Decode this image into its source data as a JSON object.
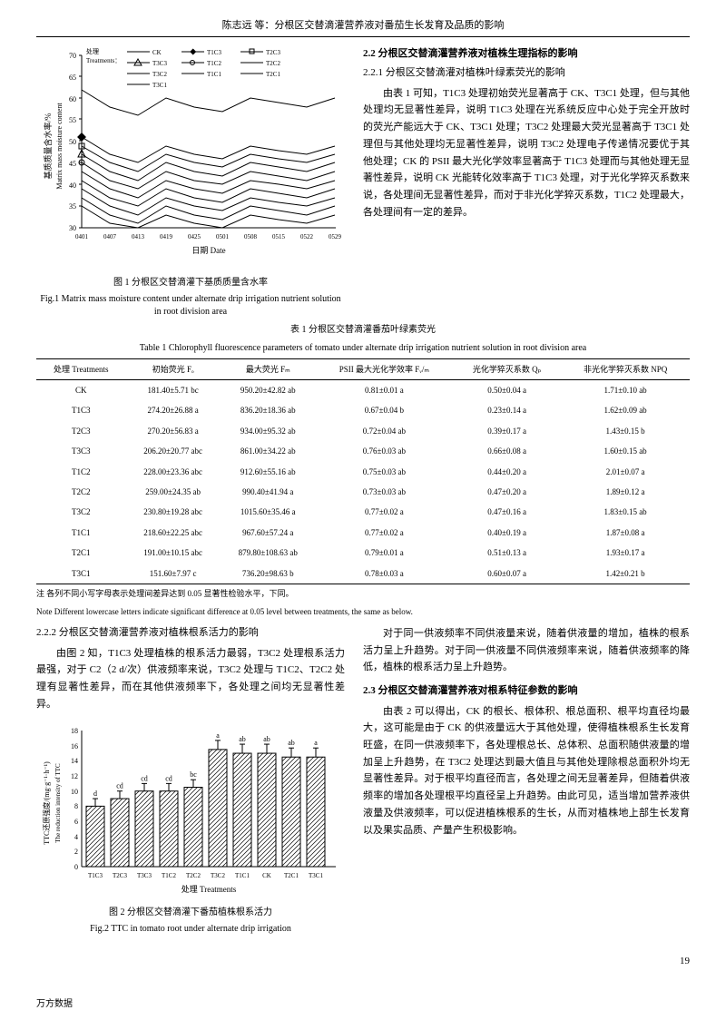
{
  "header": {
    "running_title": "陈志远 等：分根区交替滴灌营养液对番茄生长发育及品质的影响"
  },
  "fig1": {
    "type": "line",
    "title_cn": "图 1 分根区交替滴灌下基质质量含水率",
    "title_en": "Fig.1   Matrix mass moisture content under alternate drip irrigation nutrient solution in root division area",
    "xlabel": "日期 Date",
    "ylabel": "基质质量含水率/%\nMatrix mass moisture content",
    "xlim": [
      "0401",
      "0529"
    ],
    "ylim": [
      30,
      70
    ],
    "ytick_step": 5,
    "legend_label": "处理\nTreatments：",
    "x_ticks": [
      "0401",
      "0407",
      "0413",
      "0419",
      "0425",
      "0501",
      "0508",
      "0515",
      "0522",
      "0529"
    ],
    "series": [
      {
        "name": "CK",
        "marker": "line",
        "color": "#000000",
        "values": [
          62,
          58,
          56,
          60,
          58,
          57,
          60,
          59,
          58,
          60
        ]
      },
      {
        "name": "T1C3",
        "marker": "diamond",
        "color": "#000000",
        "values": [
          51,
          47,
          45,
          49,
          47,
          46,
          49,
          48,
          47,
          49
        ]
      },
      {
        "name": "T2C3",
        "marker": "square",
        "color": "#000000",
        "values": [
          49,
          45,
          43,
          47,
          45,
          44,
          47,
          46,
          45,
          47
        ]
      },
      {
        "name": "T3C3",
        "marker": "triangle",
        "color": "#000000",
        "values": [
          47,
          43,
          41,
          45,
          43,
          42,
          45,
          44,
          43,
          45
        ]
      },
      {
        "name": "T1C2",
        "marker": "circle",
        "color": "#000000",
        "values": [
          45,
          41,
          39,
          43,
          41,
          40,
          43,
          42,
          41,
          43
        ]
      },
      {
        "name": "T2C2",
        "marker": "diamond-open",
        "color": "#000000",
        "values": [
          43,
          39,
          37,
          41,
          39,
          38,
          41,
          40,
          39,
          41
        ]
      },
      {
        "name": "T3C2",
        "marker": "square-open",
        "color": "#000000",
        "values": [
          41,
          37,
          35,
          39,
          37,
          36,
          39,
          38,
          37,
          39
        ]
      },
      {
        "name": "T1C1",
        "marker": "triangle-open",
        "color": "#000000",
        "values": [
          39,
          35,
          33,
          37,
          35,
          34,
          37,
          36,
          35,
          37
        ]
      },
      {
        "name": "T2C1",
        "marker": "x",
        "color": "#000000",
        "values": [
          37,
          33,
          31,
          35,
          33,
          32,
          35,
          34,
          33,
          35
        ]
      },
      {
        "name": "T3C1",
        "marker": "plus",
        "color": "#000000",
        "values": [
          35,
          31,
          30,
          33,
          31,
          30,
          33,
          32,
          31,
          33
        ]
      }
    ],
    "background_color": "#ffffff",
    "grid": false,
    "label_fontsize": 9
  },
  "section_2_2": {
    "title": "2.2 分根区交替滴灌营养液对植株生理指标的影响",
    "sub_2_2_1_title": "2.2.1 分根区交替滴灌对植株叶绿素荧光的影响",
    "para1": "由表 1 可知，T1C3 处理初始荧光显著高于 CK、T3C1 处理，但与其他处理均无显著性差异，说明 T1C3 处理在光系统反应中心处于完全开放时的荧光产能远大于 CK、T3C1 处理；T3C2 处理最大荧光显著高于 T3C1 处理但与其他处理均无显著性差异，说明 T3C2 处理电子传递情况要优于其他处理；CK 的 PSII 最大光化学效率显著高于 T1C3 处理而与其他处理无显著性差异，说明 CK 光能转化效率高于 T1C3 处理，对于光化学猝灭系数来说，各处理间无显著性差异，而对于非光化学猝灭系数，T1C2 处理最大，各处理间有一定的差异。"
  },
  "table1": {
    "caption_cn": "表 1 分根区交替滴灌番茄叶绿素荧光",
    "caption_en": "Table 1   Chlorophyll fluorescence parameters of tomato under alternate drip irrigation nutrient solution in root division area",
    "columns": [
      "处理 Treatments",
      "初始荧光 Fₒ",
      "最大荧光 Fₘ",
      "PSII 最大光化学效率 Fᵥ/ₘ",
      "光化学猝灭系数 Qₚ",
      "非光化学猝灭系数 NPQ"
    ],
    "rows": [
      [
        "CK",
        "181.40±5.71 bc",
        "950.20±42.82 ab",
        "0.81±0.01 a",
        "0.50±0.04 a",
        "1.71±0.10 ab"
      ],
      [
        "T1C3",
        "274.20±26.88 a",
        "836.20±18.36 ab",
        "0.67±0.04 b",
        "0.23±0.14 a",
        "1.62±0.09 ab"
      ],
      [
        "T2C3",
        "270.20±56.83 a",
        "934.00±95.32 ab",
        "0.72±0.04 ab",
        "0.39±0.17 a",
        "1.43±0.15 b"
      ],
      [
        "T3C3",
        "206.20±20.77 abc",
        "861.00±34.22 ab",
        "0.76±0.03 ab",
        "0.66±0.08 a",
        "1.60±0.15 ab"
      ],
      [
        "T1C2",
        "228.00±23.36 abc",
        "912.60±55.16 ab",
        "0.75±0.03 ab",
        "0.44±0.20 a",
        "2.01±0.07 a"
      ],
      [
        "T2C2",
        "259.00±24.35 ab",
        "990.40±41.94 a",
        "0.73±0.03 ab",
        "0.47±0.20 a",
        "1.89±0.12 a"
      ],
      [
        "T3C2",
        "230.80±19.28 abc",
        "1015.60±35.46 a",
        "0.77±0.02 a",
        "0.47±0.16 a",
        "1.83±0.15 ab"
      ],
      [
        "T1C1",
        "218.60±22.25 abc",
        "967.60±57.24 a",
        "0.77±0.02 a",
        "0.40±0.19 a",
        "1.87±0.08 a"
      ],
      [
        "T2C1",
        "191.00±10.15 abc",
        "879.80±108.63 ab",
        "0.79±0.01 a",
        "0.51±0.13 a",
        "1.93±0.17 a"
      ],
      [
        "T3C1",
        "151.60±7.97 c",
        "736.20±98.63 b",
        "0.78±0.03 a",
        "0.60±0.07 a",
        "1.42±0.21 b"
      ]
    ],
    "note_cn": "注 各列不同小写字母表示处理间差异达到 0.05 显著性检验水平，下同。",
    "note_en": "Note   Different lowercase letters indicate significant difference at 0.05 level between treatments, the same as below."
  },
  "section_2_2_2": {
    "title": "2.2.2 分根区交替滴灌营养液对植株根系活力的影响",
    "para": "由图 2 知，T1C3 处理植株的根系活力最弱，T3C2 处理根系活力最强，对于 C2（2 d/次）供液频率来说，T3C2 处理与 T1C2、T2C2 处理有显著性差异，而在其他供液频率下，各处理之间均无显著性差异。",
    "para_right": "对于同一供液频率不同供液量来说，随着供液量的增加，植株的根系活力呈上升趋势。对于同一供液量不同供液频率来说，随着供液频率的降低，植株的根系活力呈上升趋势。"
  },
  "section_2_3": {
    "title": "2.3 分根区交替滴灌营养液对根系特征参数的影响",
    "para": "由表 2 可以得出，CK 的根长、根体积、根总面积、根平均直径均最大，这可能是由于 CK 的供液量远大于其他处理，使得植株根系生长发育旺盛，在同一供液频率下，各处理根总长、总体积、总面积随供液量的增加呈上升趋势，在 T3C2 处理达到最大值且与其他处理除根总面积外均无显著性差异。对于根平均直径而言，各处理之间无显著差异，但随着供液频率的增加各处理根平均直径呈上升趋势。由此可见，适当增加营养液供液量及供液频率，可以促进植株根系的生长，从而对植株地上部生长发育以及果实品质、产量产生积极影响。"
  },
  "fig2": {
    "type": "bar",
    "title_cn": "图 2 分根区交替滴灌下番茄植株根系活力",
    "title_en": "Fig.2   TTC in tomato root under alternate drip irrigation",
    "xlabel": "处理 Treatments",
    "ylabel": "TTC还原强度/(mg·g⁻¹·h⁻¹)\nThe reduction intensity of TTC",
    "ylim": [
      0,
      18
    ],
    "ytick_step": 2,
    "categories": [
      "T1C3",
      "T2C3",
      "T3C3",
      "T1C2",
      "T2C2",
      "T3C2",
      "T1C1",
      "CK",
      "T2C1",
      "T3C1"
    ],
    "values": [
      8,
      9,
      10,
      10,
      10.5,
      15.5,
      15,
      15,
      14.5,
      14.5
    ],
    "errors": [
      1,
      1,
      1,
      1,
      1,
      1.2,
      1.2,
      1.2,
      1.2,
      1.2
    ],
    "labels": [
      "d",
      "cd",
      "cd",
      "cd",
      "bc",
      "a",
      "ab",
      "ab",
      "ab",
      "a"
    ],
    "bar_fill": "#ffffff",
    "bar_stroke": "#000000",
    "bar_pattern": "diagonal-hatch",
    "background_color": "#ffffff",
    "label_fontsize": 9
  },
  "footer": {
    "page_number": "19",
    "db_mark": "万方数据"
  }
}
